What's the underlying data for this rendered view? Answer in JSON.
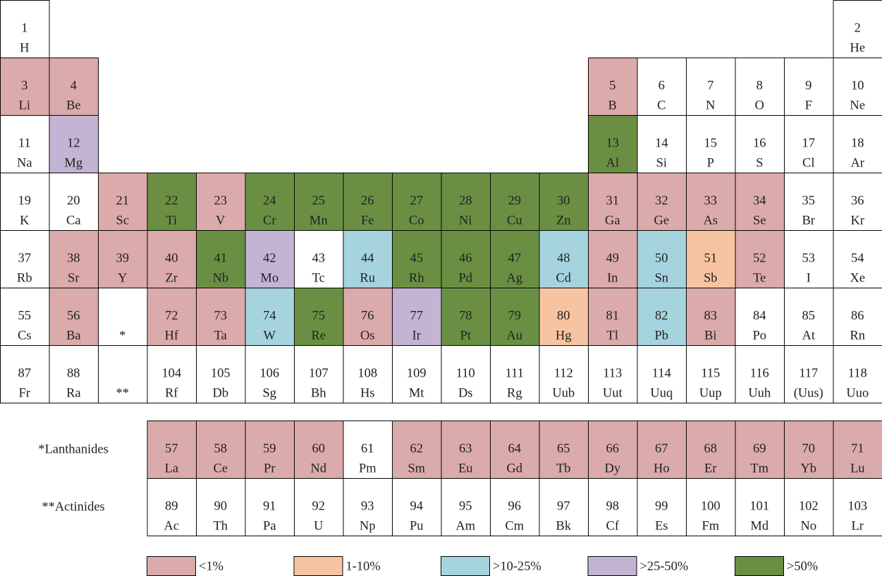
{
  "table": {
    "rows": [
      [
        {
          "number": 1,
          "symbol": "H"
        },
        null,
        null,
        null,
        null,
        null,
        null,
        null,
        null,
        null,
        null,
        null,
        null,
        null,
        null,
        null,
        null,
        {
          "number": 2,
          "symbol": "He"
        }
      ],
      [
        {
          "number": 3,
          "symbol": "Li",
          "abundance": 0
        },
        {
          "number": 4,
          "symbol": "Be",
          "abundance": 0
        },
        null,
        null,
        null,
        null,
        null,
        null,
        null,
        null,
        null,
        null,
        {
          "number": 5,
          "symbol": "B",
          "abundance": 0
        },
        {
          "number": 6,
          "symbol": "C"
        },
        {
          "number": 7,
          "symbol": "N"
        },
        {
          "number": 8,
          "symbol": "O"
        },
        {
          "number": 9,
          "symbol": "F"
        },
        {
          "number": 10,
          "symbol": "Ne"
        }
      ],
      [
        {
          "number": 11,
          "symbol": "Na"
        },
        {
          "number": 12,
          "symbol": "Mg",
          "abundance": 3
        },
        null,
        null,
        null,
        null,
        null,
        null,
        null,
        null,
        null,
        null,
        {
          "number": 13,
          "symbol": "Al",
          "abundance": 4
        },
        {
          "number": 14,
          "symbol": "Si"
        },
        {
          "number": 15,
          "symbol": "P"
        },
        {
          "number": 16,
          "symbol": "S"
        },
        {
          "number": 17,
          "symbol": "Cl"
        },
        {
          "number": 18,
          "symbol": "Ar"
        }
      ],
      [
        {
          "number": 19,
          "symbol": "K"
        },
        {
          "number": 20,
          "symbol": "Ca"
        },
        {
          "number": 21,
          "symbol": "Sc",
          "abundance": 0
        },
        {
          "number": 22,
          "symbol": "Ti",
          "abundance": 4
        },
        {
          "number": 23,
          "symbol": "V",
          "abundance": 0
        },
        {
          "number": 24,
          "symbol": "Cr",
          "abundance": 4
        },
        {
          "number": 25,
          "symbol": "Mn",
          "abundance": 4
        },
        {
          "number": 26,
          "symbol": "Fe",
          "abundance": 4
        },
        {
          "number": 27,
          "symbol": "Co",
          "abundance": 4
        },
        {
          "number": 28,
          "symbol": "Ni",
          "abundance": 4
        },
        {
          "number": 29,
          "symbol": "Cu",
          "abundance": 4
        },
        {
          "number": 30,
          "symbol": "Zn",
          "abundance": 4
        },
        {
          "number": 31,
          "symbol": "Ga",
          "abundance": 0
        },
        {
          "number": 32,
          "symbol": "Ge",
          "abundance": 0
        },
        {
          "number": 33,
          "symbol": "As",
          "abundance": 0
        },
        {
          "number": 34,
          "symbol": "Se",
          "abundance": 0
        },
        {
          "number": 35,
          "symbol": "Br"
        },
        {
          "number": 36,
          "symbol": "Kr"
        }
      ],
      [
        {
          "number": 37,
          "symbol": "Rb"
        },
        {
          "number": 38,
          "symbol": "Sr",
          "abundance": 0
        },
        {
          "number": 39,
          "symbol": "Y",
          "abundance": 0
        },
        {
          "number": 40,
          "symbol": "Zr",
          "abundance": 0
        },
        {
          "number": 41,
          "symbol": "Nb",
          "abundance": 4
        },
        {
          "number": 42,
          "symbol": "Mo",
          "abundance": 3
        },
        {
          "number": 43,
          "symbol": "Tc"
        },
        {
          "number": 44,
          "symbol": "Ru",
          "abundance": 2
        },
        {
          "number": 45,
          "symbol": "Rh",
          "abundance": 4
        },
        {
          "number": 46,
          "symbol": "Pd",
          "abundance": 4
        },
        {
          "number": 47,
          "symbol": "Ag",
          "abundance": 4
        },
        {
          "number": 48,
          "symbol": "Cd",
          "abundance": 2
        },
        {
          "number": 49,
          "symbol": "In",
          "abundance": 0
        },
        {
          "number": 50,
          "symbol": "Sn",
          "abundance": 2
        },
        {
          "number": 51,
          "symbol": "Sb",
          "abundance": 1
        },
        {
          "number": 52,
          "symbol": "Te",
          "abundance": 0
        },
        {
          "number": 53,
          "symbol": "I"
        },
        {
          "number": 54,
          "symbol": "Xe"
        }
      ],
      [
        {
          "number": 55,
          "symbol": "Cs"
        },
        {
          "number": 56,
          "symbol": "Ba",
          "abundance": 0
        },
        {
          "symbol": "*"
        },
        {
          "number": 72,
          "symbol": "Hf",
          "abundance": 0
        },
        {
          "number": 73,
          "symbol": "Ta",
          "abundance": 0
        },
        {
          "number": 74,
          "symbol": "W",
          "abundance": 2
        },
        {
          "number": 75,
          "symbol": "Re",
          "abundance": 4
        },
        {
          "number": 76,
          "symbol": "Os",
          "abundance": 0
        },
        {
          "number": 77,
          "symbol": "Ir",
          "abundance": 3
        },
        {
          "number": 78,
          "symbol": "Pt",
          "abundance": 4
        },
        {
          "number": 79,
          "symbol": "Au",
          "abundance": 4
        },
        {
          "number": 80,
          "symbol": "Hg",
          "abundance": 1
        },
        {
          "number": 81,
          "symbol": "Tl",
          "abundance": 0
        },
        {
          "number": 82,
          "symbol": "Pb",
          "abundance": 2
        },
        {
          "number": 83,
          "symbol": "Bi",
          "abundance": 0
        },
        {
          "number": 84,
          "symbol": "Po"
        },
        {
          "number": 85,
          "symbol": "At"
        },
        {
          "number": 86,
          "symbol": "Rn"
        }
      ],
      [
        {
          "number": 87,
          "symbol": "Fr"
        },
        {
          "number": 88,
          "symbol": "Ra"
        },
        {
          "symbol": "**"
        },
        {
          "number": 104,
          "symbol": "Rf"
        },
        {
          "number": 105,
          "symbol": "Db"
        },
        {
          "number": 106,
          "symbol": "Sg"
        },
        {
          "number": 107,
          "symbol": "Bh"
        },
        {
          "number": 108,
          "symbol": "Hs"
        },
        {
          "number": 109,
          "symbol": "Mt"
        },
        {
          "number": 110,
          "symbol": "Ds"
        },
        {
          "number": 111,
          "symbol": "Rg"
        },
        {
          "number": 112,
          "symbol": "Uub"
        },
        {
          "number": 113,
          "symbol": "Uut"
        },
        {
          "number": 114,
          "symbol": "Uuq"
        },
        {
          "number": 115,
          "symbol": "Uup"
        },
        {
          "number": 116,
          "symbol": "Uuh"
        },
        {
          "number": 117,
          "symbol": "(Uus)"
        },
        {
          "number": 118,
          "symbol": "Uuo"
        }
      ]
    ]
  },
  "series": [
    {
      "label": "*Lanthanides",
      "elements": [
        {
          "number": 57,
          "symbol": "La",
          "abundance": 0
        },
        {
          "number": 58,
          "symbol": "Ce",
          "abundance": 0
        },
        {
          "number": 59,
          "symbol": "Pr",
          "abundance": 0
        },
        {
          "number": 60,
          "symbol": "Nd",
          "abundance": 0
        },
        {
          "number": 61,
          "symbol": "Pm"
        },
        {
          "number": 62,
          "symbol": "Sm",
          "abundance": 0
        },
        {
          "number": 63,
          "symbol": "Eu",
          "abundance": 0
        },
        {
          "number": 64,
          "symbol": "Gd",
          "abundance": 0
        },
        {
          "number": 65,
          "symbol": "Tb",
          "abundance": 0
        },
        {
          "number": 66,
          "symbol": "Dy",
          "abundance": 0
        },
        {
          "number": 67,
          "symbol": "Ho",
          "abundance": 0
        },
        {
          "number": 68,
          "symbol": "Er",
          "abundance": 0
        },
        {
          "number": 69,
          "symbol": "Tm",
          "abundance": 0
        },
        {
          "number": 70,
          "symbol": "Yb",
          "abundance": 0
        },
        {
          "number": 71,
          "symbol": "Lu",
          "abundance": 0
        }
      ]
    },
    {
      "label": "**Actinides",
      "elements": [
        {
          "number": 89,
          "symbol": "Ac"
        },
        {
          "number": 90,
          "symbol": "Th"
        },
        {
          "number": 91,
          "symbol": "Pa"
        },
        {
          "number": 92,
          "symbol": "U"
        },
        {
          "number": 93,
          "symbol": "Np"
        },
        {
          "number": 94,
          "symbol": "Pu"
        },
        {
          "number": 95,
          "symbol": "Am"
        },
        {
          "number": 96,
          "symbol": "Cm"
        },
        {
          "number": 97,
          "symbol": "Bk"
        },
        {
          "number": 98,
          "symbol": "Cf"
        },
        {
          "number": 99,
          "symbol": "Es"
        },
        {
          "number": 100,
          "symbol": "Fm"
        },
        {
          "number": 101,
          "symbol": "Md"
        },
        {
          "number": 102,
          "symbol": "No"
        },
        {
          "number": 103,
          "symbol": "Lr"
        }
      ]
    }
  ],
  "legend": [
    {
      "label": "<1%",
      "color": "#dbaaaa"
    },
    {
      "label": "1-10%",
      "color": "#f6c4a0"
    },
    {
      "label": ">10-25%",
      "color": "#a6d4de"
    },
    {
      "label": ">25-50%",
      "color": "#c2b4d2"
    },
    {
      "label": ">50%",
      "color": "#6a8f43"
    }
  ]
}
